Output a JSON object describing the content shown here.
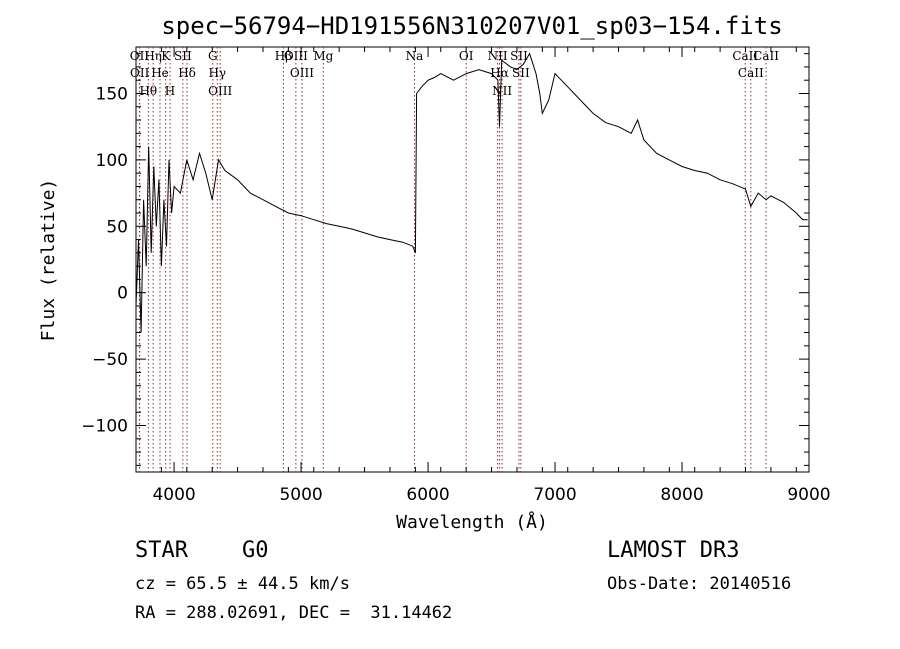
{
  "chart_data": {
    "type": "line",
    "title": "spec−56794−HD191556N310207V01_sp03−154.fits",
    "xlabel": "Wavelength (Å)",
    "ylabel": "Flux (relative)",
    "xlim": [
      3700,
      9000
    ],
    "ylim": [
      -135,
      185
    ],
    "xticks": [
      4000,
      5000,
      6000,
      7000,
      8000,
      9000
    ],
    "yticks": [
      -100,
      -50,
      0,
      50,
      100,
      150
    ],
    "ytick_labels": [
      "−100",
      "−50",
      "0",
      "50",
      "100",
      "150"
    ],
    "grid": false,
    "line_color": "#000000",
    "marker_color": "#b22222",
    "series": [
      {
        "x": [
          3700,
          3720,
          3740,
          3760,
          3780,
          3800,
          3820,
          3840,
          3860,
          3880,
          3900,
          3920,
          3940,
          3960,
          3980,
          4000,
          4050,
          4100,
          4150,
          4200,
          4250,
          4300,
          4350,
          4400,
          4500,
          4600,
          4700,
          4800,
          4900,
          5000,
          5100,
          5200,
          5300,
          5400,
          5500,
          5600,
          5700,
          5800,
          5880,
          5900,
          5910,
          5950,
          6000,
          6050,
          6100,
          6200,
          6300,
          6400,
          6500,
          6550,
          6563,
          6580,
          6650,
          6700,
          6750,
          6800,
          6850,
          6880,
          6900,
          6950,
          7000,
          7050,
          7100,
          7150,
          7200,
          7300,
          7400,
          7500,
          7600,
          7650,
          7700,
          7800,
          7900,
          8000,
          8100,
          8200,
          8300,
          8400,
          8500,
          8542,
          8600,
          8662,
          8700,
          8800,
          8900,
          8950,
          8990
        ],
        "y": [
          -10,
          40,
          -30,
          70,
          20,
          110,
          30,
          95,
          50,
          85,
          20,
          70,
          35,
          100,
          60,
          80,
          75,
          100,
          85,
          105,
          90,
          70,
          100,
          92,
          85,
          75,
          70,
          65,
          60,
          58,
          55,
          52,
          50,
          48,
          45,
          42,
          40,
          38,
          35,
          30,
          150,
          155,
          160,
          162,
          165,
          160,
          165,
          168,
          165,
          160,
          125,
          175,
          170,
          168,
          172,
          180,
          165,
          150,
          135,
          145,
          165,
          160,
          155,
          150,
          145,
          135,
          128,
          125,
          120,
          130,
          115,
          105,
          100,
          95,
          92,
          90,
          85,
          82,
          78,
          65,
          75,
          70,
          73,
          68,
          60,
          55,
          55
        ]
      }
    ],
    "lines": [
      {
        "name": "Hθ",
        "x": 3797
      },
      {
        "name": "OII",
        "x": 3727
      },
      {
        "name": "OII",
        "x": 3729
      },
      {
        "name": "Hη",
        "x": 3835
      },
      {
        "name": "He",
        "x": 3889
      },
      {
        "name": "K",
        "x": 3934
      },
      {
        "name": "H",
        "x": 3968
      },
      {
        "name": "SII",
        "x": 4069
      },
      {
        "name": "Hδ",
        "x": 4102
      },
      {
        "name": "OIII",
        "x": 4363
      },
      {
        "name": "Hγ",
        "x": 4340
      },
      {
        "name": "G",
        "x": 4305
      },
      {
        "name": "Hβ",
        "x": 4861
      },
      {
        "name": "OIII",
        "x": 4959
      },
      {
        "name": "OIII",
        "x": 5007
      },
      {
        "name": "Mg",
        "x": 5175
      },
      {
        "name": "Na",
        "x": 5893
      },
      {
        "name": "OI",
        "x": 6300
      },
      {
        "name": "NII",
        "x": 6548
      },
      {
        "name": "Hα",
        "x": 6563
      },
      {
        "name": "NII",
        "x": 6583
      },
      {
        "name": "SII",
        "x": 6716
      },
      {
        "name": "SII",
        "x": 6731
      },
      {
        "name": "CaII",
        "x": 8498
      },
      {
        "name": "CaII",
        "x": 8542
      },
      {
        "name": "CaII",
        "x": 8662
      }
    ]
  },
  "info": {
    "object_class": "STAR",
    "subclass": "G0",
    "survey": "LAMOST DR3",
    "cz": "cz = 65.5 ± 44.5 km/s",
    "obs_date": "Obs-Date: 20140516",
    "coords": "RA = 288.02691, DEC =  31.14462"
  }
}
